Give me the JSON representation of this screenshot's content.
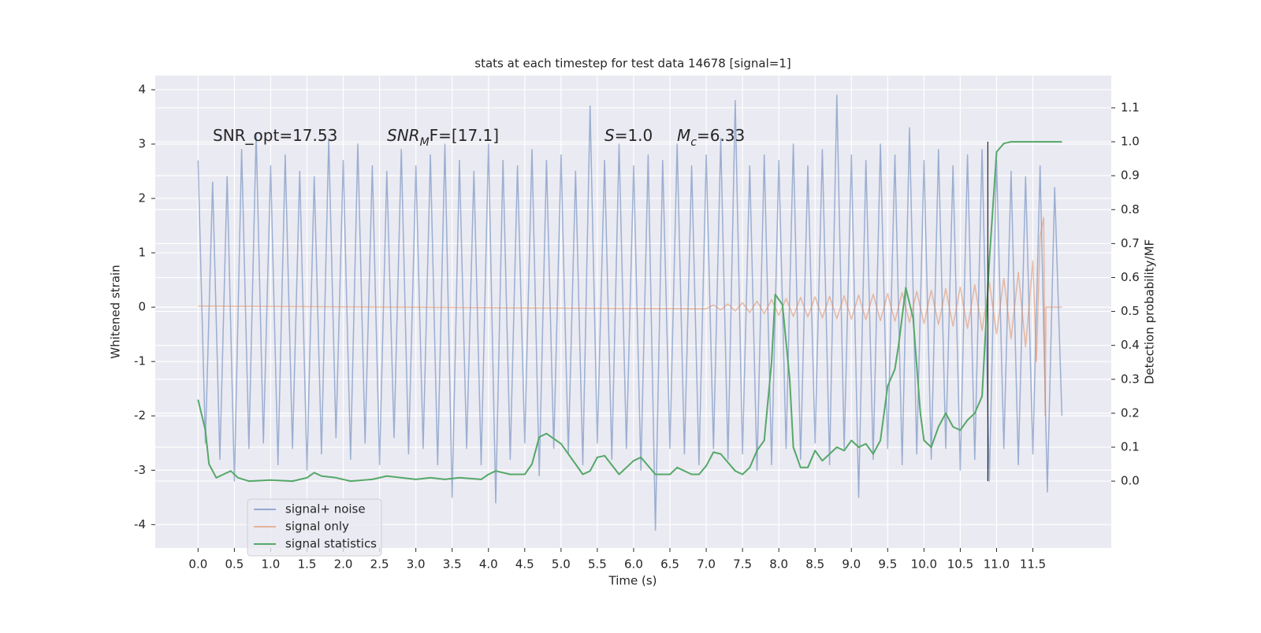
{
  "chart_data": {
    "type": "line",
    "title": "stats at each timestep for test data 14678 [signal=1]",
    "xlabel": "Time (s)",
    "ylabel": "Whitened strain",
    "y2label": "Detection probability/MF",
    "xlim": [
      -0.59,
      12.58
    ],
    "ylim": [
      -4.43,
      4.26
    ],
    "y2lim": [
      -0.197,
      1.195
    ],
    "xticks": [
      {
        "value": 0,
        "label": "0.0"
      },
      0.5,
      {
        "value": 1,
        "label": "1.0"
      },
      1.5,
      {
        "value": 2,
        "label": "2.0"
      },
      2.5,
      {
        "value": 3,
        "label": "3.0"
      },
      3.5,
      {
        "value": 4,
        "label": "4.0"
      },
      4.5,
      {
        "value": 5,
        "label": "5.0"
      },
      5.5,
      {
        "value": 6,
        "label": "6.0"
      },
      6.5,
      {
        "value": 7,
        "label": "7.0"
      },
      7.5,
      {
        "value": 8,
        "label": "8.0"
      },
      8.5,
      {
        "value": 9,
        "label": "9.0"
      },
      9.5,
      {
        "value": 10,
        "label": "10.0"
      },
      10.5,
      {
        "value": 11,
        "label": "11.0"
      },
      11.5
    ],
    "yticks": [
      -4,
      -3,
      -2,
      -1,
      0,
      1,
      2,
      3,
      4
    ],
    "y2ticks": [
      {
        "value": 0,
        "label": "0.0"
      },
      0.1,
      0.2,
      0.3,
      0.4,
      0.5,
      0.6,
      0.7,
      0.8,
      0.9,
      {
        "value": 1,
        "label": "1.0"
      },
      1.1
    ],
    "grid": true,
    "legend": "lower left",
    "annotations": [
      {
        "parts": [
          "SNR_opt=17.53"
        ]
      },
      {
        "parts": [
          "SNR",
          "M",
          "F=[17.1]"
        ]
      },
      {
        "parts": [
          "S",
          "=1.0"
        ]
      },
      {
        "parts": [
          "M",
          "c",
          "=6.33"
        ]
      }
    ],
    "vline": {
      "x": 10.88,
      "y2": [
        0,
        1
      ],
      "color": "#262626"
    },
    "series": [
      {
        "name": "signal+ noise",
        "color": "#4c72b0",
        "x": [
          0.0,
          0.1,
          0.2,
          0.3,
          0.4,
          0.5,
          0.6,
          0.7,
          0.8,
          0.9,
          1.0,
          1.1,
          1.2,
          1.3,
          1.4,
          1.5,
          1.6,
          1.7,
          1.8,
          1.9,
          2.0,
          2.1,
          2.2,
          2.3,
          2.4,
          2.5,
          2.6,
          2.7,
          2.8,
          2.9,
          3.0,
          3.1,
          3.2,
          3.3,
          3.4,
          3.5,
          3.6,
          3.7,
          3.8,
          3.9,
          4.0,
          4.1,
          4.2,
          4.3,
          4.4,
          4.5,
          4.6,
          4.7,
          4.8,
          4.9,
          5.0,
          5.1,
          5.2,
          5.3,
          5.4,
          5.5,
          5.6,
          5.7,
          5.8,
          5.9,
          6.0,
          6.1,
          6.2,
          6.3,
          6.4,
          6.5,
          6.6,
          6.7,
          6.8,
          6.9,
          7.0,
          7.1,
          7.2,
          7.3,
          7.4,
          7.5,
          7.6,
          7.7,
          7.8,
          7.9,
          8.0,
          8.1,
          8.2,
          8.3,
          8.4,
          8.5,
          8.6,
          8.7,
          8.8,
          8.9,
          9.0,
          9.1,
          9.2,
          9.3,
          9.4,
          9.5,
          9.6,
          9.7,
          9.8,
          9.9,
          10.0,
          10.1,
          10.2,
          10.3,
          10.4,
          10.5,
          10.6,
          10.7,
          10.8,
          10.9,
          11.0,
          11.1,
          11.2,
          11.3,
          11.4,
          11.5,
          11.6,
          11.7,
          11.8,
          11.9
        ],
        "values": [
          2.7,
          -2.5,
          2.3,
          -2.8,
          2.4,
          -3.2,
          2.9,
          -2.6,
          3.2,
          -2.5,
          2.6,
          -2.9,
          2.8,
          -2.6,
          2.5,
          -3.0,
          2.4,
          -2.7,
          3.1,
          -2.4,
          2.7,
          -2.8,
          3.0,
          -2.5,
          2.6,
          -2.9,
          2.5,
          -2.4,
          2.9,
          -2.7,
          2.6,
          -2.6,
          2.8,
          -2.9,
          3.0,
          -3.5,
          2.7,
          -2.6,
          2.5,
          -2.9,
          3.0,
          -3.6,
          2.7,
          -2.8,
          2.6,
          -2.5,
          2.9,
          -3.1,
          2.7,
          -2.6,
          2.8,
          -2.7,
          2.5,
          -2.9,
          3.7,
          -2.5,
          2.7,
          -2.8,
          3.0,
          -2.6,
          2.6,
          -3.0,
          2.8,
          -4.1,
          2.7,
          -2.6,
          3.0,
          -2.7,
          2.6,
          -2.9,
          2.8,
          -2.6,
          3.1,
          -2.8,
          3.8,
          -2.7,
          2.6,
          -3.0,
          2.8,
          -2.9,
          2.7,
          -2.6,
          3.0,
          -2.8,
          2.6,
          -2.5,
          2.9,
          -2.9,
          3.9,
          -2.6,
          2.8,
          -3.5,
          2.7,
          -2.8,
          3.0,
          -2.6,
          2.8,
          -2.9,
          3.3,
          -2.7,
          2.7,
          -2.8,
          2.9,
          -2.6,
          2.6,
          -3.0,
          2.8,
          -2.8,
          2.9,
          -3.2,
          2.7,
          -2.6,
          2.5,
          -2.9,
          2.4,
          -2.7,
          2.6,
          -3.4,
          2.2,
          -2.0
        ]
      },
      {
        "name": "signal only",
        "color": "#dd8452",
        "x": [
          0.0,
          7.0,
          7.1,
          7.2,
          7.3,
          7.4,
          7.5,
          7.6,
          7.7,
          7.8,
          7.9,
          8.0,
          8.1,
          8.2,
          8.3,
          8.4,
          8.5,
          8.6,
          8.7,
          8.8,
          8.9,
          9.0,
          9.1,
          9.2,
          9.3,
          9.4,
          9.5,
          9.6,
          9.7,
          9.8,
          9.9,
          10.0,
          10.1,
          10.2,
          10.3,
          10.4,
          10.5,
          10.6,
          10.7,
          10.8,
          10.9,
          11.0,
          11.1,
          11.2,
          11.3,
          11.4,
          11.5,
          11.55,
          11.6,
          11.65,
          11.67,
          11.68,
          11.9
        ],
        "values": [
          0.02,
          -0.03,
          0.04,
          -0.05,
          0.06,
          -0.07,
          0.08,
          -0.1,
          0.11,
          -0.12,
          0.14,
          -0.15,
          0.16,
          -0.17,
          0.18,
          -0.18,
          0.19,
          -0.2,
          0.2,
          -0.21,
          0.21,
          -0.22,
          0.22,
          -0.23,
          0.24,
          -0.25,
          0.25,
          -0.26,
          0.27,
          -0.28,
          0.29,
          -0.3,
          0.31,
          -0.32,
          0.34,
          -0.35,
          0.37,
          -0.39,
          0.41,
          -0.43,
          0.46,
          -0.49,
          0.53,
          -0.58,
          0.64,
          -0.73,
          0.85,
          -1.0,
          1.3,
          1.65,
          -2.0,
          0.0,
          0.0
        ]
      },
      {
        "name": "signal statistics",
        "color": "#55a868",
        "axis": "y2",
        "x": [
          0.0,
          0.1,
          0.15,
          0.25,
          0.35,
          0.45,
          0.55,
          0.7,
          1.0,
          1.3,
          1.5,
          1.6,
          1.7,
          1.9,
          2.1,
          2.4,
          2.6,
          2.8,
          3.0,
          3.2,
          3.4,
          3.6,
          3.9,
          4.0,
          4.1,
          4.3,
          4.5,
          4.6,
          4.7,
          4.8,
          5.0,
          5.2,
          5.3,
          5.4,
          5.5,
          5.6,
          5.8,
          6.0,
          6.1,
          6.3,
          6.5,
          6.6,
          6.8,
          6.9,
          7.0,
          7.1,
          7.2,
          7.4,
          7.5,
          7.6,
          7.7,
          7.8,
          7.9,
          7.95,
          8.05,
          8.15,
          8.2,
          8.3,
          8.4,
          8.5,
          8.6,
          8.7,
          8.8,
          8.9,
          9.0,
          9.1,
          9.2,
          9.3,
          9.4,
          9.5,
          9.6,
          9.65,
          9.75,
          9.85,
          9.95,
          10.0,
          10.1,
          10.2,
          10.3,
          10.4,
          10.5,
          10.6,
          10.7,
          10.8,
          10.9,
          11.0,
          11.1,
          11.2,
          11.6,
          11.9
        ],
        "values": [
          0.24,
          0.15,
          0.05,
          0.01,
          0.02,
          0.03,
          0.01,
          0.0,
          0.003,
          0.0,
          0.01,
          0.025,
          0.015,
          0.01,
          0.0,
          0.005,
          0.015,
          0.01,
          0.005,
          0.01,
          0.005,
          0.01,
          0.005,
          0.02,
          0.03,
          0.02,
          0.02,
          0.05,
          0.13,
          0.14,
          0.11,
          0.05,
          0.02,
          0.03,
          0.07,
          0.075,
          0.02,
          0.06,
          0.07,
          0.02,
          0.02,
          0.04,
          0.02,
          0.02,
          0.045,
          0.085,
          0.08,
          0.03,
          0.02,
          0.04,
          0.09,
          0.12,
          0.35,
          0.55,
          0.52,
          0.3,
          0.1,
          0.04,
          0.04,
          0.09,
          0.06,
          0.08,
          0.1,
          0.09,
          0.12,
          0.1,
          0.11,
          0.08,
          0.12,
          0.28,
          0.33,
          0.4,
          0.57,
          0.48,
          0.2,
          0.12,
          0.1,
          0.16,
          0.2,
          0.16,
          0.15,
          0.18,
          0.2,
          0.25,
          0.65,
          0.97,
          0.995,
          1.0,
          1.0,
          1.0
        ]
      }
    ]
  }
}
